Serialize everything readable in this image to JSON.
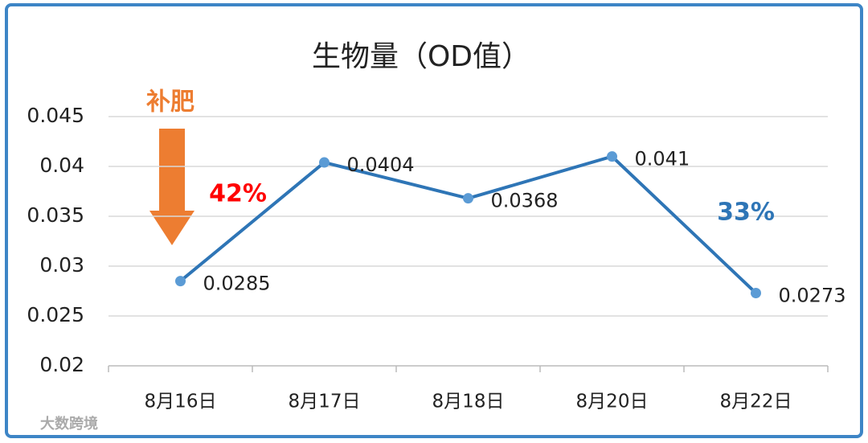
{
  "chart_data": {
    "type": "line",
    "title": "生物量（OD值）",
    "categories": [
      "8月16日",
      "8月17日",
      "8月18日",
      "8月20日",
      "8月22日"
    ],
    "series": [
      {
        "name": "OD值",
        "color": "#2e75b6",
        "values": [
          0.0285,
          0.0404,
          0.0368,
          0.041,
          0.0273
        ]
      }
    ],
    "ylim": [
      0.02,
      0.045
    ],
    "yticks": [
      0.02,
      0.025,
      0.03,
      0.035,
      0.04,
      0.045
    ],
    "grid": true,
    "annotations": [
      {
        "text": "补肥",
        "color": "#ed7d31"
      },
      {
        "text": "42%",
        "color": "#ff0000"
      },
      {
        "text": "33%",
        "color": "#2e75b6"
      }
    ],
    "watermark": "大数跨境"
  }
}
